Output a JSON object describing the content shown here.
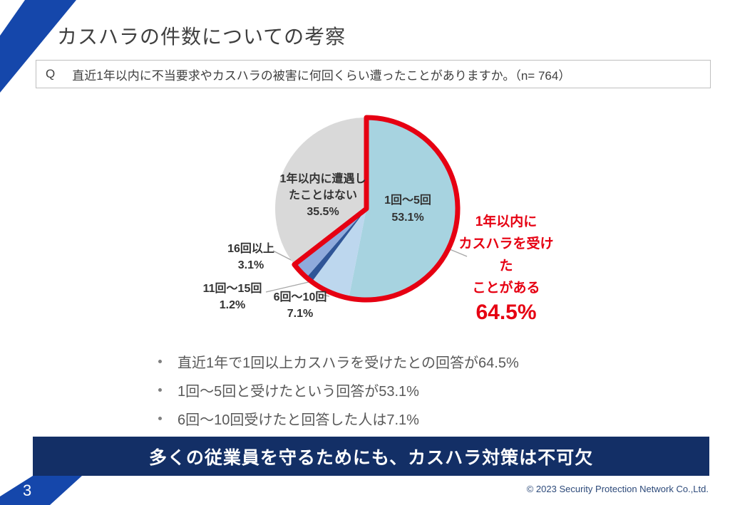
{
  "slide": {
    "title": "カスハラの件数についての考察",
    "page_number": "3",
    "footer": "© 2023 Security Protection Network Co.,Ltd.",
    "banner": "多くの従業員を守るためにも、カスハラ対策は不可欠"
  },
  "question": {
    "prefix": "Q",
    "text": "直近1年以内に不当要求やカスハラの被害に何回くらい遭ったことがありますか。（n= 764）"
  },
  "chart_data": {
    "type": "pie",
    "title": "直近1年以内のカスハラ被害回数",
    "unit": "%",
    "start_angle_deg": 0,
    "direction": "clockwise",
    "segments": [
      {
        "label": "1回～5回",
        "value": 53.1,
        "color": "#a7d3e0"
      },
      {
        "label": "6回～10回",
        "value": 7.1,
        "color": "#bdd7ee"
      },
      {
        "label": "11回～15回",
        "value": 1.2,
        "color": "#2f5597"
      },
      {
        "label": "16回以上",
        "value": 3.1,
        "color": "#8faadc"
      },
      {
        "label": "1年以内に遭遇したことはない",
        "value": 35.5,
        "color": "#d9d9d9"
      }
    ],
    "highlight": {
      "label": "1年以内にカスハラを受けたことがある",
      "value": 64.5,
      "color": "#e60012"
    },
    "legend": "none",
    "grid": false
  },
  "pie_labels": {
    "seg1": {
      "line1": "1回～5回",
      "line2": "53.1%"
    },
    "seg2": {
      "line1": "6回～10回",
      "line2": "7.1%"
    },
    "seg3": {
      "line1": "11回～15回",
      "line2": "1.2%"
    },
    "seg4": {
      "line1": "16回以上",
      "line2": "3.1%"
    },
    "none": {
      "line1": "1年以内に遭遇し",
      "line2": "たことはない",
      "line3": "35.5%"
    },
    "highlight": {
      "line1": "1年以内に",
      "line2": "カスハラを受けた",
      "line3": "ことがある",
      "line4": "64.5%"
    }
  },
  "bullets": [
    "直近1年で1回以上カスハラを受けたとの回答が64.5%",
    "1回～5回と受けたという回答が53.1%",
    "6回～10回受けたと回答した人は7.1%"
  ]
}
